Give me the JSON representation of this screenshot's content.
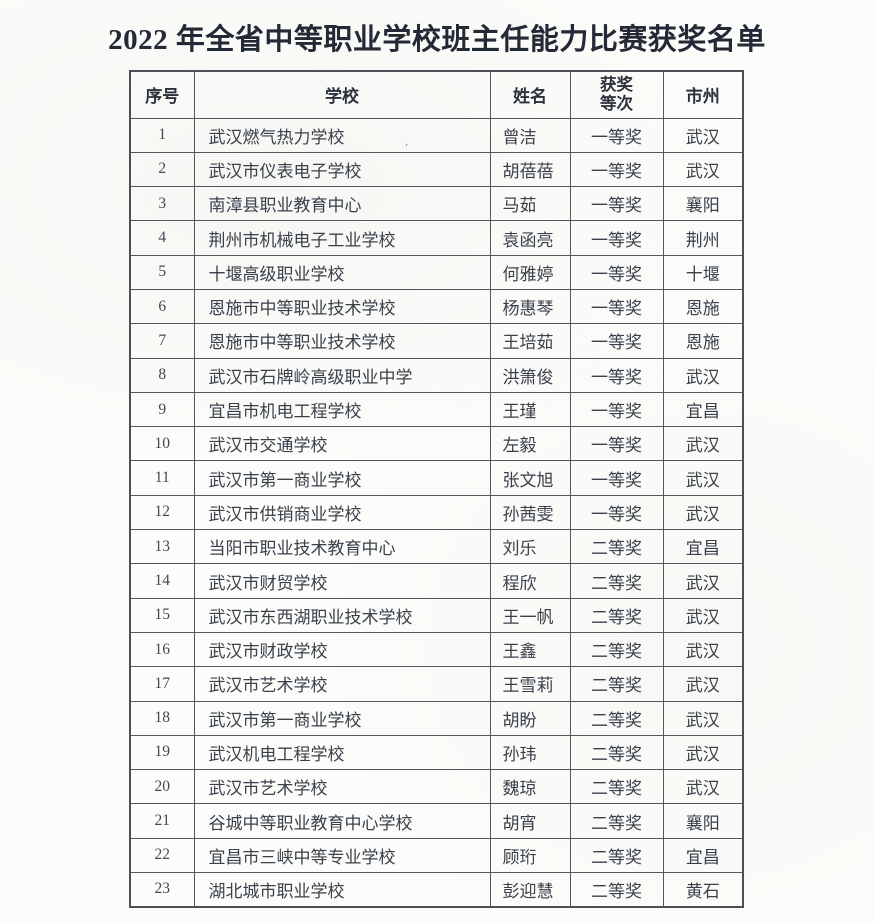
{
  "page": {
    "title": "2022 年全省中等职业学校班主任能力比赛获奖名单"
  },
  "table": {
    "headers": {
      "no": "序号",
      "school": "学校",
      "name": "姓名",
      "award": "获奖\n等次",
      "city": "市州"
    },
    "rows": [
      {
        "no": "1",
        "school": "武汉燃气热力学校",
        "name": "曾洁",
        "award": "一等奖",
        "city": "武汉"
      },
      {
        "no": "2",
        "school": "武汉市仪表电子学校",
        "name": "胡蓓蓓",
        "award": "一等奖",
        "city": "武汉"
      },
      {
        "no": "3",
        "school": "南漳县职业教育中心",
        "name": "马茹",
        "award": "一等奖",
        "city": "襄阳"
      },
      {
        "no": "4",
        "school": "荆州市机械电子工业学校",
        "name": "袁函亮",
        "award": "一等奖",
        "city": "荆州"
      },
      {
        "no": "5",
        "school": "十堰高级职业学校",
        "name": "何雅婷",
        "award": "一等奖",
        "city": "十堰"
      },
      {
        "no": "6",
        "school": "恩施市中等职业技术学校",
        "name": "杨惠琴",
        "award": "一等奖",
        "city": "恩施"
      },
      {
        "no": "7",
        "school": "恩施市中等职业技术学校",
        "name": "王培茹",
        "award": "一等奖",
        "city": "恩施"
      },
      {
        "no": "8",
        "school": "武汉市石牌岭高级职业中学",
        "name": "洪箫俊",
        "award": "一等奖",
        "city": "武汉"
      },
      {
        "no": "9",
        "school": "宜昌市机电工程学校",
        "name": "王瑾",
        "award": "一等奖",
        "city": "宜昌"
      },
      {
        "no": "10",
        "school": "武汉市交通学校",
        "name": "左毅",
        "award": "一等奖",
        "city": "武汉"
      },
      {
        "no": "11",
        "school": "武汉市第一商业学校",
        "name": "张文旭",
        "award": "一等奖",
        "city": "武汉"
      },
      {
        "no": "12",
        "school": "武汉市供销商业学校",
        "name": "孙茜雯",
        "award": "一等奖",
        "city": "武汉"
      },
      {
        "no": "13",
        "school": "当阳市职业技术教育中心",
        "name": "刘乐",
        "award": "二等奖",
        "city": "宜昌"
      },
      {
        "no": "14",
        "school": "武汉市财贸学校",
        "name": "程欣",
        "award": "二等奖",
        "city": "武汉"
      },
      {
        "no": "15",
        "school": "武汉市东西湖职业技术学校",
        "name": "王一帆",
        "award": "二等奖",
        "city": "武汉"
      },
      {
        "no": "16",
        "school": "武汉市财政学校",
        "name": "王鑫",
        "award": "二等奖",
        "city": "武汉"
      },
      {
        "no": "17",
        "school": "武汉市艺术学校",
        "name": "王雪莉",
        "award": "二等奖",
        "city": "武汉"
      },
      {
        "no": "18",
        "school": "武汉市第一商业学校",
        "name": "胡盼",
        "award": "二等奖",
        "city": "武汉"
      },
      {
        "no": "19",
        "school": "武汉机电工程学校",
        "name": "孙玮",
        "award": "二等奖",
        "city": "武汉"
      },
      {
        "no": "20",
        "school": "武汉市艺术学校",
        "name": "魏琼",
        "award": "二等奖",
        "city": "武汉"
      },
      {
        "no": "21",
        "school": "谷城中等职业教育中心学校",
        "name": "胡宵",
        "award": "二等奖",
        "city": "襄阳"
      },
      {
        "no": "22",
        "school": "宜昌市三峡中等专业学校",
        "name": "顾珩",
        "award": "二等奖",
        "city": "宜昌"
      },
      {
        "no": "23",
        "school": "湖北城市职业学校",
        "name": "彭迎慧",
        "award": "二等奖",
        "city": "黄石"
      }
    ],
    "artifact": "’"
  }
}
